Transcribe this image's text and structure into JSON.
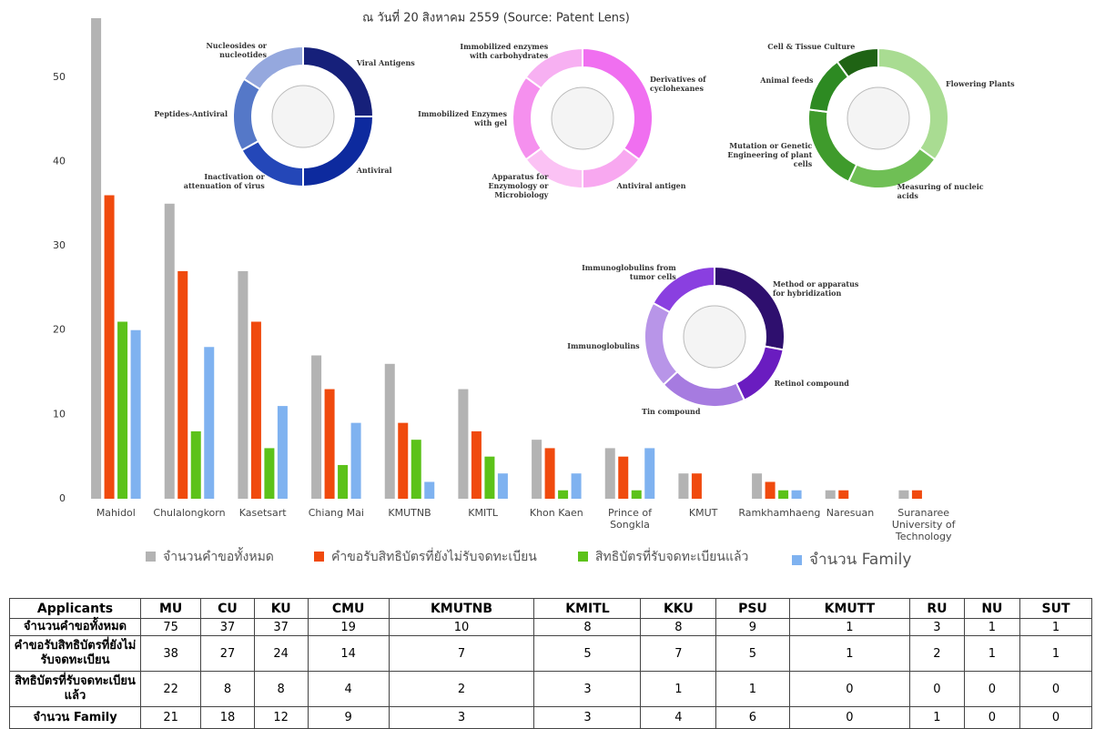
{
  "chart_data": [
    {
      "type": "bar",
      "title": "ณ วันที่ 20 สิงหาคม 2559 (Source: Patent Lens)",
      "categories": [
        "Mahidol",
        "Chulalongkorn",
        "Kasetsart",
        "Chiang Mai",
        "KMUTNB",
        "KMITL",
        "Khon Kaen",
        "Prince of Songkla",
        "KMUT",
        "Ramkhamhaeng",
        "Naresuan",
        "Suranaree University of Technology"
      ],
      "series": [
        {
          "name": "จำนวนคำขอทั้งหมด",
          "color": "#b3b3b3",
          "values": [
            57,
            35,
            27,
            17,
            16,
            13,
            7,
            6,
            3,
            3,
            1,
            1
          ]
        },
        {
          "name": "คำขอรับสิทธิบัตรที่ยังไม่รับจดทะเบียน",
          "color": "#f04a0e",
          "values": [
            36,
            27,
            21,
            13,
            9,
            8,
            6,
            5,
            3,
            2,
            1,
            1
          ]
        },
        {
          "name": "สิทธิบัตรที่รับจดทะเบียนแล้ว",
          "color": "#5cc21a",
          "values": [
            21,
            8,
            6,
            4,
            7,
            5,
            1,
            1,
            0,
            1,
            0,
            0
          ]
        },
        {
          "name": "จำนวน Family",
          "color": "#7fb2f0",
          "values": [
            20,
            18,
            11,
            9,
            2,
            3,
            3,
            6,
            0,
            1,
            0,
            0
          ]
        }
      ],
      "ylim": [
        0,
        57
      ],
      "yticks": [
        0,
        10,
        20,
        30,
        40,
        50
      ],
      "grid": false,
      "legend": "bottom"
    },
    {
      "type": "donut",
      "categories": [
        "Viral Antigens",
        "Antiviral",
        "Inactivation or attenuation of virus",
        "Peptides-Antiviral",
        "Nucleosides or nucleotides"
      ],
      "values": [
        25,
        25,
        17,
        17,
        16
      ],
      "colors": [
        "#16207a",
        "#0d2a9e",
        "#2447b8",
        "#5578c8",
        "#95a8de"
      ]
    },
    {
      "type": "donut",
      "categories": [
        "Derivatives of cyclohexanes",
        "Antiviral antigen",
        "Apparatus for Enzymology or Microbiology",
        "Immobilized Enzymes with gel",
        "Immobilized enzymes with carbohydrates"
      ],
      "values": [
        35,
        15,
        15,
        20,
        15
      ],
      "colors": [
        "#f06ff0",
        "#f8a8f0",
        "#fbc2f4",
        "#f590ee",
        "#f7b0f2"
      ]
    },
    {
      "type": "donut",
      "categories": [
        "Flowering Plants",
        "Measuring of nucleic acids",
        "Mutation or Genetic Engineering of plant cells",
        "Animal feeds",
        "Cell & Tissue Culture"
      ],
      "values": [
        35,
        22,
        20,
        13,
        10
      ],
      "colors": [
        "#a9dc92",
        "#6fbf55",
        "#3f9b2c",
        "#2d8a22",
        "#1f6314"
      ]
    },
    {
      "type": "donut",
      "categories": [
        "Method or apparatus for hybridization",
        "Retinol compound",
        "Tin compound",
        "Immunoglobulins",
        "Immunoglobulins from tumor cells"
      ],
      "values": [
        28,
        15,
        20,
        20,
        17
      ],
      "colors": [
        "#2e0f6e",
        "#6a1cc0",
        "#a67be0",
        "#b895e8",
        "#8a3fe0"
      ]
    }
  ],
  "table": {
    "header": [
      "Applicants",
      "MU",
      "CU",
      "KU",
      "CMU",
      "KMUTNB",
      "KMITL",
      "KKU",
      "PSU",
      "KMUTT",
      "RU",
      "NU",
      "SUT"
    ],
    "rows": [
      [
        "จำนวนคำขอทั้งหมด",
        75,
        37,
        37,
        19,
        10,
        8,
        8,
        9,
        1,
        3,
        1,
        1
      ],
      [
        "คำขอรับสิทธิบัตรที่ยังไม่รับจดทะเบียน",
        38,
        27,
        24,
        14,
        7,
        5,
        7,
        5,
        1,
        2,
        1,
        1
      ],
      [
        "สิทธิบัตรที่รับจดทะเบียนแล้ว",
        22,
        8,
        8,
        4,
        2,
        3,
        1,
        1,
        0,
        0,
        0,
        0
      ],
      [
        "จำนวน Family",
        21,
        18,
        12,
        9,
        3,
        3,
        4,
        6,
        0,
        1,
        0,
        0
      ]
    ]
  }
}
